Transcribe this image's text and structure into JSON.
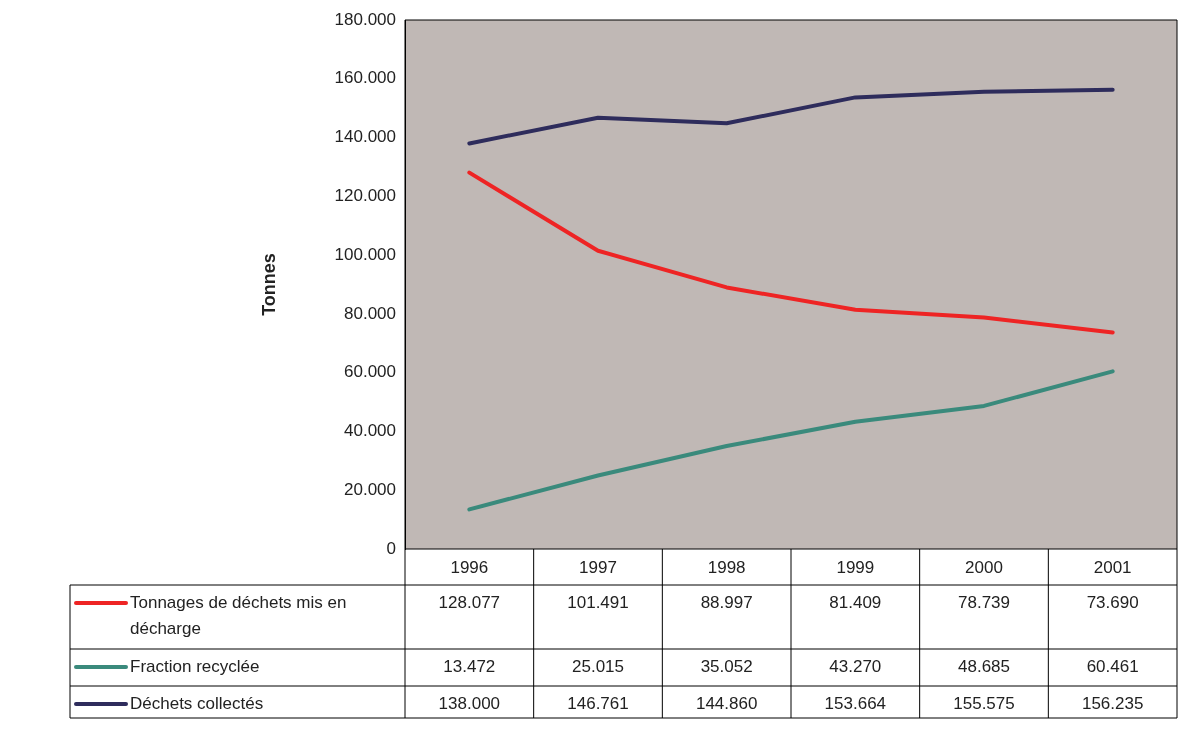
{
  "chart_data": {
    "type": "line",
    "ylabel": "Tonnes",
    "categories": [
      "1996",
      "1997",
      "1998",
      "1999",
      "2000",
      "2001"
    ],
    "ylim": [
      0,
      180000
    ],
    "yticks": [
      {
        "value": 0,
        "label": "0"
      },
      {
        "value": 20000,
        "label": "20.000"
      },
      {
        "value": 40000,
        "label": "40.000"
      },
      {
        "value": 60000,
        "label": "60.000"
      },
      {
        "value": 80000,
        "label": "80.000"
      },
      {
        "value": 100000,
        "label": "100.000"
      },
      {
        "value": 120000,
        "label": "120.000"
      },
      {
        "value": 140000,
        "label": "140.000"
      },
      {
        "value": 160000,
        "label": "160.000"
      },
      {
        "value": 180000,
        "label": "180.000"
      }
    ],
    "grid": false,
    "legend": "bottom",
    "marker": "none",
    "line_style": "solid",
    "series": [
      {
        "name": "Tonnages de déchets mis en décharge",
        "color": "#ee2424",
        "values": [
          128077,
          101491,
          88997,
          81409,
          78739,
          73690
        ],
        "value_labels": [
          "128.077",
          "101.491",
          "88.997",
          "81.409",
          "78.739",
          "73.690"
        ]
      },
      {
        "name": "Fraction recyclée",
        "color": "#3a8a7c",
        "values": [
          13472,
          25015,
          35052,
          43270,
          48685,
          60461
        ],
        "value_labels": [
          "13.472",
          "25.015",
          "35.052",
          "43.270",
          "48.685",
          "60.461"
        ]
      },
      {
        "name": "Déchets collectés",
        "color": "#2e2c5c",
        "values": [
          138000,
          146761,
          144860,
          153664,
          155575,
          156235
        ],
        "value_labels": [
          "138.000",
          "146.761",
          "144.860",
          "153.664",
          "155.575",
          "156.235"
        ]
      }
    ]
  }
}
